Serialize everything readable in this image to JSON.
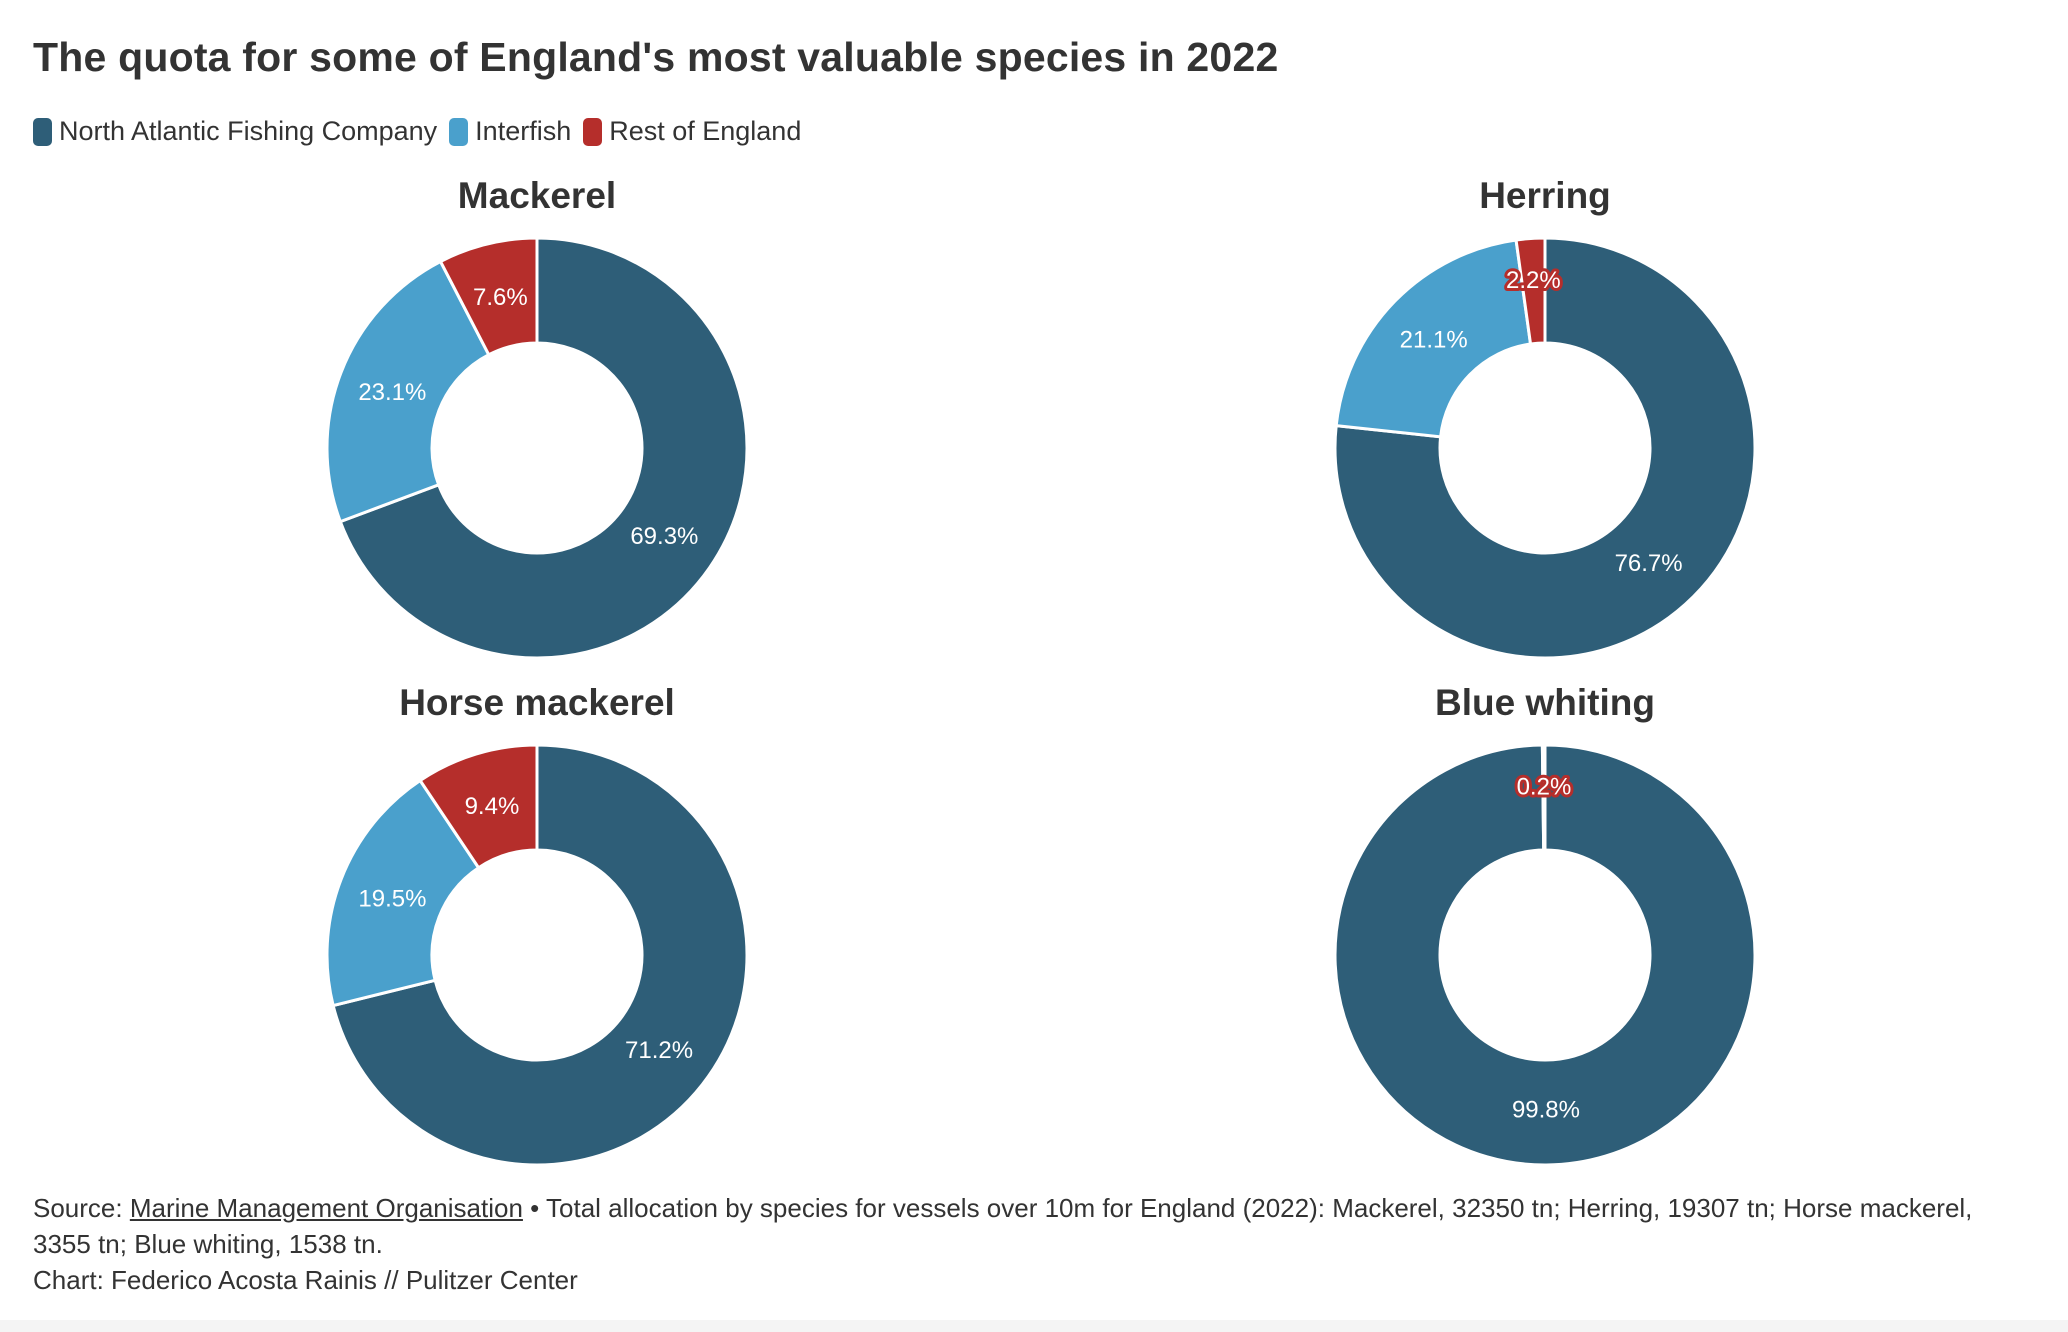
{
  "title": "The quota for some of England's most valuable species in 2022",
  "legend": [
    {
      "label": "North Atlantic Fishing Company",
      "color": "#2e5e78"
    },
    {
      "label": "Interfish",
      "color": "#4aa0cc"
    },
    {
      "label": "Rest of England",
      "color": "#b52e2b"
    }
  ],
  "chart_data": [
    {
      "type": "pie",
      "donut": true,
      "title": "Mackerel",
      "categories": [
        "North Atlantic Fishing Company",
        "Interfish",
        "Rest of England"
      ],
      "values": [
        69.3,
        23.1,
        7.6
      ],
      "labels": [
        "69.3%",
        "23.1%",
        "7.6%"
      ],
      "colors": [
        "#2e5e78",
        "#4aa0cc",
        "#b52e2b"
      ]
    },
    {
      "type": "pie",
      "donut": true,
      "title": "Herring",
      "categories": [
        "North Atlantic Fishing Company",
        "Interfish",
        "Rest of England"
      ],
      "values": [
        76.7,
        21.1,
        2.2
      ],
      "labels": [
        "76.7%",
        "21.1%",
        "2.2%"
      ],
      "colors": [
        "#2e5e78",
        "#4aa0cc",
        "#b52e2b"
      ]
    },
    {
      "type": "pie",
      "donut": true,
      "title": "Horse mackerel",
      "categories": [
        "North Atlantic Fishing Company",
        "Interfish",
        "Rest of England"
      ],
      "values": [
        71.2,
        19.5,
        9.4
      ],
      "labels": [
        "71.2%",
        "19.5%",
        "9.4%"
      ],
      "colors": [
        "#2e5e78",
        "#4aa0cc",
        "#b52e2b"
      ]
    },
    {
      "type": "pie",
      "donut": true,
      "title": "Blue whiting",
      "categories": [
        "North Atlantic Fishing Company",
        "Rest of England"
      ],
      "values": [
        99.8,
        0.2
      ],
      "labels": [
        "99.8%",
        "0.2%"
      ],
      "colors": [
        "#2e5e78",
        "#b52e2b"
      ]
    }
  ],
  "footer": {
    "source_prefix": "Source: ",
    "source_link": "Marine Management Organisation",
    "source_note": " • Total allocation by species for vessels over 10m for England (2022): Mackerel, 32350 tn; Herring, 19307 tn; Horse mackerel, 3355 tn; Blue whiting, 1538 tn.",
    "credit": "Chart: Federico Acosta Rainis // Pulitzer Center"
  }
}
